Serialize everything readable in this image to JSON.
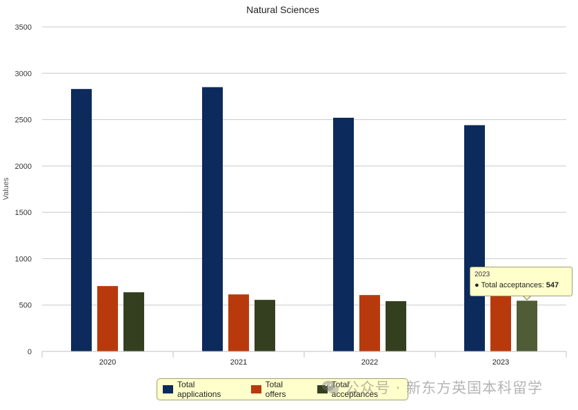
{
  "chart_data": {
    "type": "bar",
    "title": "Natural Sciences",
    "ylabel": "Values",
    "xlabel": "",
    "categories": [
      "2020",
      "2021",
      "2022",
      "2023"
    ],
    "ylim": [
      0,
      3500
    ],
    "yticks": [
      0,
      500,
      1000,
      1500,
      2000,
      2500,
      3000,
      3500
    ],
    "grid": true,
    "legend_position": "bottom",
    "series": [
      {
        "name": "Total applications",
        "color": "#0c2a5b",
        "values": [
          2830,
          2850,
          2520,
          2440
        ]
      },
      {
        "name": "Total offers",
        "color": "#b83a0c",
        "values": [
          705,
          615,
          608,
          635
        ]
      },
      {
        "name": "Total acceptances",
        "color": "#343f1f",
        "values": [
          638,
          556,
          542,
          547
        ]
      }
    ],
    "highlight_color": "#4f5c35"
  },
  "tooltip": {
    "category": "2023",
    "series_label": "Total acceptances",
    "value": "547"
  },
  "watermark": {
    "text": "公众号 · 新东方英国本科留学"
  }
}
